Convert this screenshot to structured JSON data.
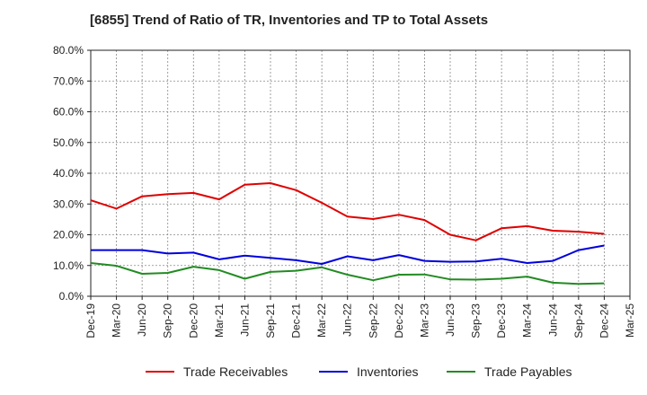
{
  "chart_data": {
    "type": "line",
    "title": "[6855]  Trend of Ratio of TR, Inventories and TP to Total Assets",
    "xlabel": "",
    "ylabel": "",
    "ylim": [
      0,
      80
    ],
    "yticks": [
      "0.0%",
      "10.0%",
      "20.0%",
      "30.0%",
      "40.0%",
      "50.0%",
      "60.0%",
      "70.0%",
      "80.0%"
    ],
    "x_tick_labels": [
      "Dec-19",
      "Mar-20",
      "Jun-20",
      "Sep-20",
      "Dec-20",
      "Mar-21",
      "Jun-21",
      "Sep-21",
      "Dec-21",
      "Mar-22",
      "Jun-22",
      "Sep-22",
      "Dec-22",
      "Mar-23",
      "Jun-23",
      "Sep-23",
      "Dec-23",
      "Mar-24",
      "Jun-24",
      "Sep-24",
      "Dec-24",
      "Mar-25"
    ],
    "categories": [
      "Dec-19",
      "Mar-20",
      "Jun-20",
      "Sep-20",
      "Dec-20",
      "Mar-21",
      "Jun-21",
      "Sep-21",
      "Dec-21",
      "Mar-22",
      "Jun-22",
      "Sep-22",
      "Dec-22",
      "Mar-23",
      "Jun-23",
      "Sep-23",
      "Dec-23",
      "Mar-24",
      "Jun-24",
      "Sep-24",
      "Dec-24"
    ],
    "grid": true,
    "legend_position": "bottom",
    "series": [
      {
        "name": "Trade Receivables",
        "color": "#e00000",
        "values": [
          31.2,
          28.5,
          32.5,
          33.2,
          33.6,
          31.5,
          36.3,
          36.8,
          34.5,
          30.4,
          25.9,
          25.1,
          26.5,
          24.8,
          20.0,
          18.2,
          22.1,
          22.8,
          21.3,
          21.0,
          20.3
        ]
      },
      {
        "name": "Inventories",
        "color": "#0000dd",
        "values": [
          15.0,
          15.0,
          15.0,
          13.9,
          14.2,
          12.0,
          13.2,
          12.5,
          11.7,
          10.5,
          13.0,
          11.7,
          13.4,
          11.5,
          11.2,
          11.3,
          12.2,
          10.8,
          11.5,
          15.0,
          16.5
        ]
      },
      {
        "name": "Trade Payables",
        "color": "#228b22",
        "values": [
          10.8,
          9.9,
          7.3,
          7.6,
          9.6,
          8.5,
          5.7,
          7.9,
          8.3,
          9.4,
          7.0,
          5.2,
          7.0,
          7.1,
          5.5,
          5.4,
          5.7,
          6.4,
          4.4,
          4.0,
          4.2
        ]
      }
    ]
  }
}
